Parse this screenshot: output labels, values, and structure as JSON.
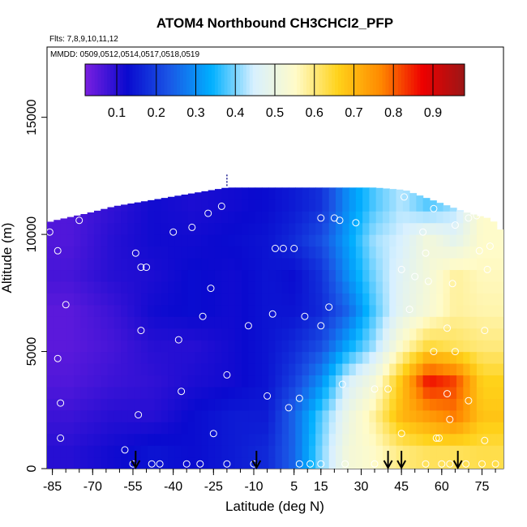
{
  "chart_data": {
    "type": "heatmap",
    "title": "ATOM4 Northbound CH3CHCl2_PFP",
    "flights_note": "Flts: 7,8,9,10,11,12",
    "dates_note": "MMDD: 0509,0512,0514,0517,0518,0519",
    "xlabel": "Latitude (deg N)",
    "ylabel": "Altitude (m)",
    "xlim": [
      -87,
      83
    ],
    "ylim": [
      0,
      18000
    ],
    "x_ticks": [
      -85,
      -70,
      -55,
      -40,
      -25,
      -10,
      5,
      15,
      30,
      45,
      60,
      75
    ],
    "y_ticks": [
      0,
      5000,
      10000,
      15000
    ],
    "colorbar": {
      "range": [
        0.02,
        0.98
      ],
      "tick_values": [
        0.1,
        0.2,
        0.3,
        0.4,
        0.5,
        0.6,
        0.7,
        0.8,
        0.9
      ],
      "tick_labels": [
        "0.1",
        "0.2",
        "0.3",
        "0.4",
        "0.5",
        "0.6",
        "0.7",
        "0.8",
        "0.9"
      ],
      "colors": [
        "#7a1fe0",
        "#0a0acf",
        "#1a57e6",
        "#00b0ff",
        "#d8f0ff",
        "#fffbc8",
        "#ffd21a",
        "#ff8a00",
        "#ee0000",
        "#9b1616"
      ]
    },
    "grid": {
      "lat_edges": [
        -87,
        -70,
        -55,
        -40,
        -25,
        -10,
        0,
        10,
        20,
        30,
        40,
        50,
        60,
        70,
        80
      ],
      "alt_edges": [
        0,
        1500,
        3000,
        4500,
        6000,
        7500,
        9000,
        10500,
        12000
      ],
      "values": [
        [
          0.1,
          0.12,
          0.14,
          0.13,
          0.15,
          0.17,
          0.25,
          0.4,
          0.52,
          0.55,
          0.6,
          0.62,
          0.62,
          0.63
        ],
        [
          0.08,
          0.1,
          0.1,
          0.13,
          0.15,
          0.15,
          0.25,
          0.38,
          0.5,
          0.58,
          0.7,
          0.74,
          0.78,
          0.68
        ],
        [
          0.06,
          0.08,
          0.09,
          0.11,
          0.12,
          0.14,
          0.2,
          0.3,
          0.45,
          0.52,
          0.68,
          0.86,
          0.82,
          0.66
        ],
        [
          0.05,
          0.07,
          0.1,
          0.1,
          0.12,
          0.14,
          0.17,
          0.22,
          0.33,
          0.42,
          0.55,
          0.64,
          0.62,
          0.6
        ],
        [
          0.05,
          0.08,
          0.12,
          0.13,
          0.12,
          0.14,
          0.14,
          0.17,
          0.25,
          0.38,
          0.48,
          0.53,
          0.58,
          0.57
        ],
        [
          0.07,
          0.1,
          0.11,
          0.13,
          0.12,
          0.14,
          0.13,
          0.18,
          0.3,
          0.4,
          0.47,
          0.52,
          0.58,
          0.56
        ],
        [
          0.06,
          0.1,
          0.12,
          0.12,
          0.13,
          0.14,
          0.17,
          0.22,
          0.32,
          0.42,
          0.45,
          0.52,
          0.48,
          0.55
        ],
        [
          null,
          0.09,
          0.12,
          0.11,
          0.12,
          0.13,
          0.15,
          0.18,
          0.3,
          0.38,
          0.43,
          0.38,
          0.42,
          null
        ]
      ]
    },
    "samples": [
      [
        -86,
        10100
      ],
      [
        -83,
        9300
      ],
      [
        -83,
        4700
      ],
      [
        -82,
        2800
      ],
      [
        -82,
        1300
      ],
      [
        -80,
        7000
      ],
      [
        -75,
        10600
      ],
      [
        -58,
        800
      ],
      [
        -55,
        200
      ],
      [
        -54,
        9200
      ],
      [
        -52,
        8600
      ],
      [
        -52,
        5900
      ],
      [
        -50,
        8600
      ],
      [
        -53,
        2300
      ],
      [
        -48,
        200
      ],
      [
        -45,
        200
      ],
      [
        -40,
        10100
      ],
      [
        -38,
        5500
      ],
      [
        -37,
        3300
      ],
      [
        -35,
        200
      ],
      [
        -33,
        10300
      ],
      [
        -30,
        200
      ],
      [
        -29,
        6500
      ],
      [
        -27,
        10900
      ],
      [
        -26,
        7700
      ],
      [
        -25,
        1500
      ],
      [
        -22,
        11200
      ],
      [
        -20,
        200
      ],
      [
        -20,
        4000
      ],
      [
        -12,
        6100
      ],
      [
        -10,
        200
      ],
      [
        -5,
        3100
      ],
      [
        -3,
        6600
      ],
      [
        -2,
        9400
      ],
      [
        1,
        9400
      ],
      [
        3,
        2600
      ],
      [
        5,
        9400
      ],
      [
        7,
        200
      ],
      [
        7,
        3000
      ],
      [
        9,
        6500
      ],
      [
        11,
        200
      ],
      [
        15,
        200
      ],
      [
        15,
        6100
      ],
      [
        15,
        10700
      ],
      [
        18,
        6900
      ],
      [
        20,
        10700
      ],
      [
        22,
        10600
      ],
      [
        23,
        3600
      ],
      [
        24,
        200
      ],
      [
        28,
        10500
      ],
      [
        35,
        200
      ],
      [
        35,
        3400
      ],
      [
        40,
        3400
      ],
      [
        45,
        1500
      ],
      [
        45,
        8500
      ],
      [
        46,
        11600
      ],
      [
        48,
        6800
      ],
      [
        50,
        8200
      ],
      [
        53,
        10100
      ],
      [
        54,
        200
      ],
      [
        54,
        9200
      ],
      [
        55,
        8000
      ],
      [
        57,
        11100
      ],
      [
        57,
        5000
      ],
      [
        58,
        1300
      ],
      [
        59,
        1300
      ],
      [
        60,
        200
      ],
      [
        62,
        3200
      ],
      [
        62,
        6000
      ],
      [
        63,
        200
      ],
      [
        63,
        2100
      ],
      [
        64,
        7900
      ],
      [
        65,
        5000
      ],
      [
        65,
        10400
      ],
      [
        69,
        200
      ],
      [
        70,
        2900
      ],
      [
        70,
        10700
      ],
      [
        73,
        10800
      ],
      [
        74,
        9300
      ],
      [
        75,
        200
      ],
      [
        76,
        5900
      ],
      [
        76,
        1200
      ],
      [
        77,
        8500
      ],
      [
        78,
        9500
      ],
      [
        80,
        200
      ]
    ],
    "flight_markers_lat": [
      -54,
      -9,
      40,
      45,
      66
    ],
    "column_tops": [
      [
        -87,
        10500
      ],
      [
        -84,
        10600
      ],
      [
        -80,
        10700
      ],
      [
        -72,
        10900
      ],
      [
        -62,
        11200
      ],
      [
        -20,
        12000
      ],
      [
        35,
        12000
      ],
      [
        46,
        11900
      ],
      [
        70,
        10900
      ],
      [
        77,
        10700
      ],
      [
        80,
        10500
      ],
      [
        83,
        10000
      ]
    ]
  }
}
